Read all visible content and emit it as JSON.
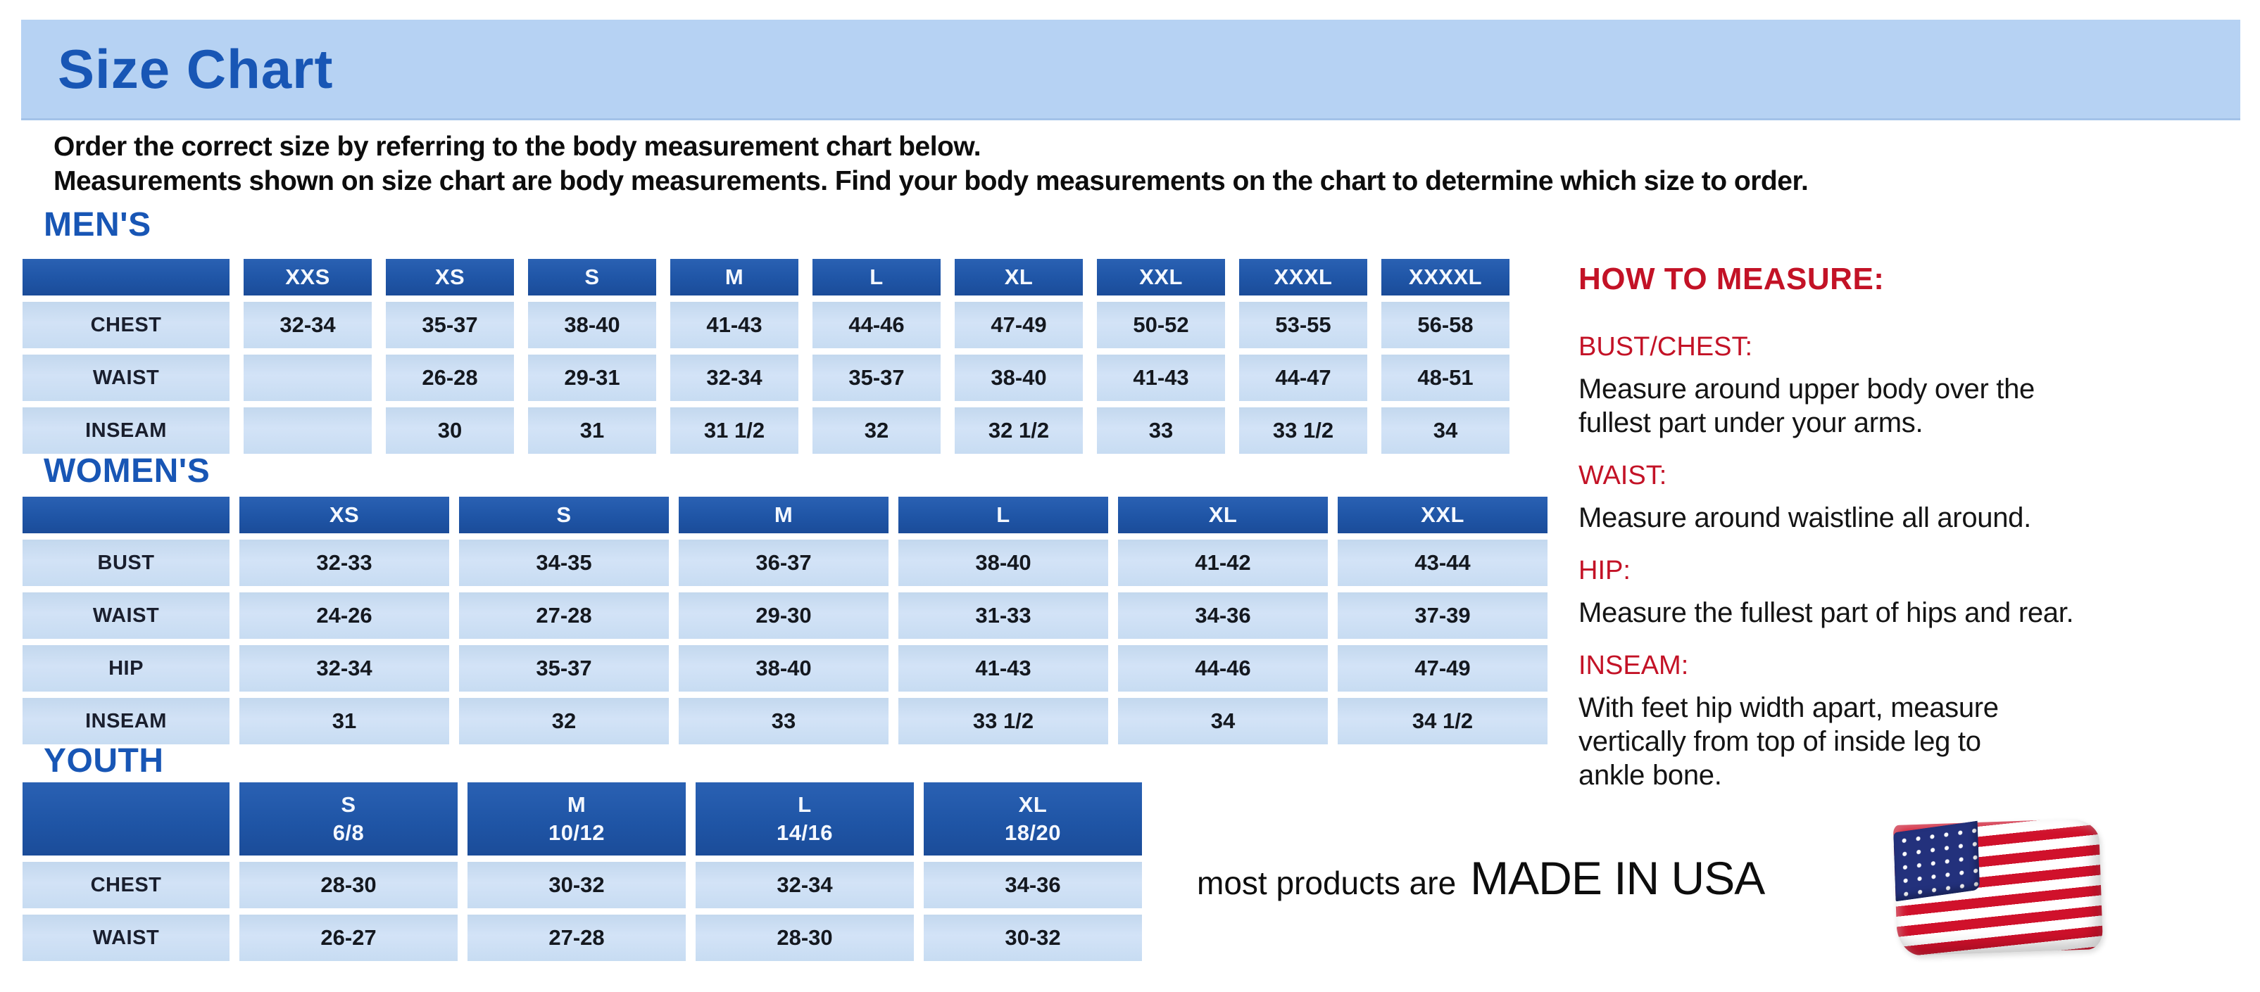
{
  "page": {
    "title": "Size Chart",
    "intro": "Order the correct size by referring to the body measurement chart below.\nMeasurements shown on size chart are body measurements.  Find your body measurements on the chart to determine which size to order."
  },
  "colors": {
    "banner_bg": "#b6d2f3",
    "heading_blue": "#1856b5",
    "table_header_bg": "#1f55a6",
    "table_cell_bg": "#cadff3",
    "accent_red": "#c31226",
    "text": "#111111"
  },
  "tables": {
    "mens": {
      "title": "MEN'S",
      "columns": [
        "XXS",
        "XS",
        "S",
        "M",
        "L",
        "XL",
        "XXL",
        "XXXL",
        "XXXXL"
      ],
      "rows": [
        {
          "label": "CHEST",
          "values": [
            "32-34",
            "35-37",
            "38-40",
            "41-43",
            "44-46",
            "47-49",
            "50-52",
            "53-55",
            "56-58"
          ]
        },
        {
          "label": "WAIST",
          "values": [
            "",
            "26-28",
            "29-31",
            "32-34",
            "35-37",
            "38-40",
            "41-43",
            "44-47",
            "48-51"
          ]
        },
        {
          "label": "INSEAM",
          "values": [
            "",
            "30",
            "31",
            "31 1/2",
            "32",
            "32 1/2",
            "33",
            "33 1/2",
            "34"
          ]
        }
      ]
    },
    "womens": {
      "title": "WOMEN'S",
      "columns": [
        "XS",
        "S",
        "M",
        "L",
        "XL",
        "XXL"
      ],
      "rows": [
        {
          "label": "BUST",
          "values": [
            "32-33",
            "34-35",
            "36-37",
            "38-40",
            "41-42",
            "43-44"
          ]
        },
        {
          "label": "WAIST",
          "values": [
            "24-26",
            "27-28",
            "29-30",
            "31-33",
            "34-36",
            "37-39"
          ]
        },
        {
          "label": "HIP",
          "values": [
            "32-34",
            "35-37",
            "38-40",
            "41-43",
            "44-46",
            "47-49"
          ]
        },
        {
          "label": "INSEAM",
          "values": [
            "31",
            "32",
            "33",
            "33 1/2",
            "34",
            "34 1/2"
          ]
        }
      ]
    },
    "youth": {
      "title": "YOUTH",
      "columns": [
        "S\n6/8",
        "M\n10/12",
        "L\n14/16",
        "XL\n18/20"
      ],
      "rows": [
        {
          "label": "CHEST",
          "values": [
            "28-30",
            "30-32",
            "32-34",
            "34-36"
          ]
        },
        {
          "label": "WAIST",
          "values": [
            "26-27",
            "27-28",
            "28-30",
            "30-32"
          ]
        }
      ]
    }
  },
  "how_to_measure": {
    "title": "HOW TO MEASURE:",
    "items": [
      {
        "label": "BUST/CHEST:",
        "text": "Measure around upper body over the\nfullest part under your arms."
      },
      {
        "label": "WAIST:",
        "text": "Measure around waistline all around."
      },
      {
        "label": "HIP:",
        "text": "Measure the fullest part of hips and rear."
      },
      {
        "label": "INSEAM:",
        "text": "With feet hip width apart, measure\nvertically from top of inside leg to\nankle bone."
      }
    ]
  },
  "footer": {
    "prefix": "most products are",
    "emphasis": "MADE IN USA",
    "flag": "us-flag-icon"
  }
}
